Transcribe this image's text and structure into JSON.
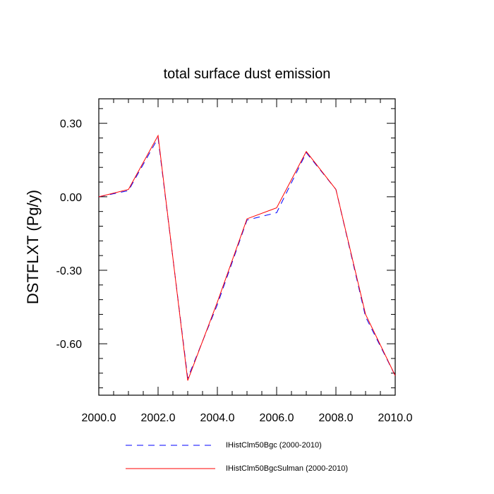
{
  "chart_data": {
    "type": "line",
    "title": "total surface dust emission",
    "xlabel": "",
    "ylabel": "DSTFLXT  (Pg/y)",
    "xlim": [
      2000,
      2010
    ],
    "ylim": [
      -0.81,
      0.4
    ],
    "x_ticks": [
      2000,
      2002,
      2004,
      2006,
      2008,
      2010
    ],
    "x_tick_labels": [
      "2000.0",
      "2002.0",
      "2004.0",
      "2006.0",
      "2008.0",
      "2010.0"
    ],
    "y_ticks": [
      0.3,
      0.0,
      -0.3,
      -0.6
    ],
    "y_tick_labels": [
      "0.30",
      "0.00",
      "-0.30",
      "-0.60"
    ],
    "grid": false,
    "legend_position": "bottom",
    "x": [
      2000,
      2001,
      2002,
      2003,
      2004,
      2005,
      2006,
      2007,
      2008,
      2009,
      2010
    ],
    "series": [
      {
        "name": "IHistClm50Bgc (2000-2010)",
        "color": "#0000ff",
        "style": "dashed",
        "values": [
          0.0,
          0.025,
          0.24,
          -0.74,
          -0.44,
          -0.095,
          -0.065,
          0.18,
          0.03,
          -0.49,
          -0.73
        ]
      },
      {
        "name": "IHistClm50BgcSulman (2000-2010)",
        "color": "#ff0000",
        "style": "solid",
        "values": [
          0.0,
          0.03,
          0.25,
          -0.75,
          -0.43,
          -0.09,
          -0.045,
          0.185,
          0.03,
          -0.48,
          -0.73
        ]
      }
    ]
  }
}
